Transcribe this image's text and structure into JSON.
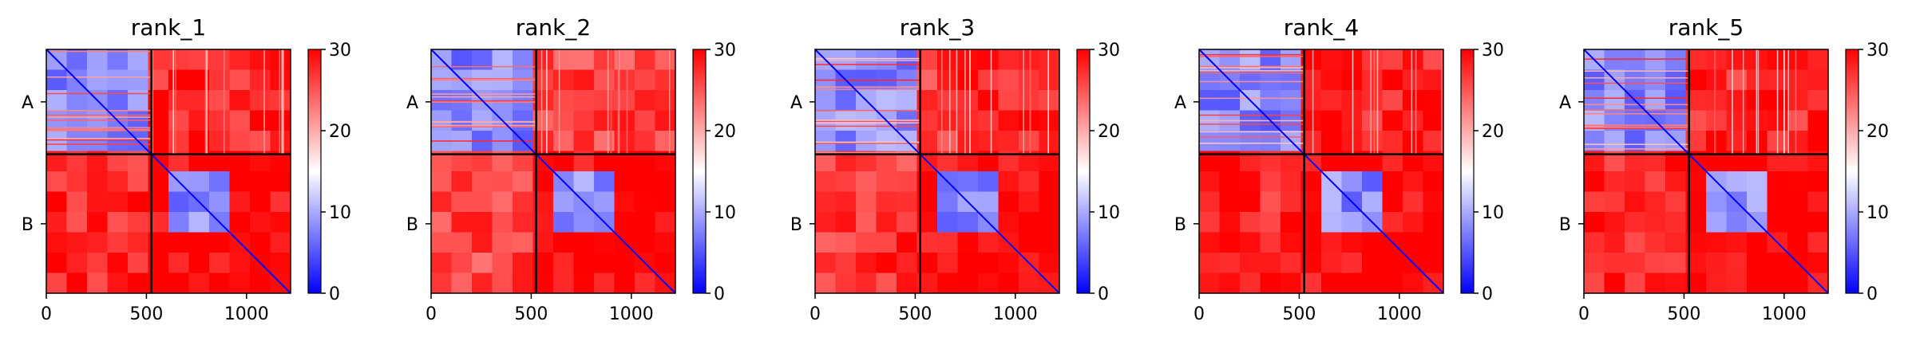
{
  "chart_data": [
    {
      "type": "heatmap",
      "title": "rank_1",
      "xlabel": "",
      "ylabel": "",
      "x_ticks": [
        0,
        500,
        1000
      ],
      "xlim": [
        0,
        1220
      ],
      "chain_labels": [
        "A",
        "B"
      ],
      "chain_boundary": 525,
      "colorbar": {
        "min": 0,
        "max": 30,
        "ticks": [
          0,
          10,
          20,
          30
        ],
        "colormap": "bwr"
      },
      "regions": {
        "A_A": {
          "mean_value": 8,
          "diagonal_value": 0
        },
        "A_B": {
          "mean_value": 28
        },
        "B_A": {
          "mean_value": 28
        },
        "B_B_core": {
          "range": [
            640,
            960
          ],
          "mean_value": 8
        },
        "B_B_tail": {
          "mean_value": 30,
          "diagonal_value": 0
        }
      },
      "grid": false,
      "legend": "colorbar-right"
    },
    {
      "type": "heatmap",
      "title": "rank_2",
      "xlabel": "",
      "ylabel": "",
      "x_ticks": [
        0,
        500,
        1000
      ],
      "xlim": [
        0,
        1220
      ],
      "chain_labels": [
        "A",
        "B"
      ],
      "chain_boundary": 525,
      "colorbar": {
        "min": 0,
        "max": 30,
        "ticks": [
          0,
          10,
          20,
          30
        ],
        "colormap": "bwr"
      },
      "regions": {
        "A_A": {
          "mean_value": 8,
          "diagonal_value": 0
        },
        "A_B": {
          "mean_value": 26
        },
        "B_A": {
          "mean_value": 26
        },
        "B_B_core": {
          "range": [
            640,
            960
          ],
          "mean_value": 8
        },
        "B_B_tail": {
          "mean_value": 30,
          "diagonal_value": 0
        }
      },
      "grid": false,
      "legend": "colorbar-right"
    },
    {
      "type": "heatmap",
      "title": "rank_3",
      "xlabel": "",
      "ylabel": "",
      "x_ticks": [
        0,
        500,
        1000
      ],
      "xlim": [
        0,
        1220
      ],
      "chain_labels": [
        "A",
        "B"
      ],
      "chain_boundary": 525,
      "colorbar": {
        "min": 0,
        "max": 30,
        "ticks": [
          0,
          10,
          20,
          30
        ],
        "colormap": "bwr"
      },
      "regions": {
        "A_A": {
          "mean_value": 8,
          "diagonal_value": 0
        },
        "A_B": {
          "mean_value": 27
        },
        "B_A": {
          "mean_value": 27
        },
        "B_B_core": {
          "range": [
            640,
            960
          ],
          "mean_value": 8
        },
        "B_B_tail": {
          "mean_value": 30,
          "diagonal_value": 0
        }
      },
      "grid": false,
      "legend": "colorbar-right"
    },
    {
      "type": "heatmap",
      "title": "rank_4",
      "xlabel": "",
      "ylabel": "",
      "x_ticks": [
        0,
        500,
        1000
      ],
      "xlim": [
        0,
        1220
      ],
      "chain_labels": [
        "A",
        "B"
      ],
      "chain_boundary": 525,
      "colorbar": {
        "min": 0,
        "max": 30,
        "ticks": [
          0,
          10,
          20,
          30
        ],
        "colormap": "bwr"
      },
      "regions": {
        "A_A": {
          "mean_value": 8,
          "diagonal_value": 0
        },
        "A_B": {
          "mean_value": 28
        },
        "B_A": {
          "mean_value": 28
        },
        "B_B_core": {
          "range": [
            640,
            960
          ],
          "mean_value": 8
        },
        "B_B_tail": {
          "mean_value": 30,
          "diagonal_value": 0
        }
      },
      "grid": false,
      "legend": "colorbar-right"
    },
    {
      "type": "heatmap",
      "title": "rank_5",
      "xlabel": "",
      "ylabel": "",
      "x_ticks": [
        0,
        500,
        1000
      ],
      "xlim": [
        0,
        1220
      ],
      "chain_labels": [
        "A",
        "B"
      ],
      "chain_boundary": 525,
      "colorbar": {
        "min": 0,
        "max": 30,
        "ticks": [
          0,
          10,
          20,
          30
        ],
        "colormap": "bwr"
      },
      "regions": {
        "A_A": {
          "mean_value": 8,
          "diagonal_value": 0
        },
        "A_B": {
          "mean_value": 28
        },
        "B_A": {
          "mean_value": 28
        },
        "B_B_core": {
          "range": [
            640,
            960
          ],
          "mean_value": 8
        },
        "B_B_tail": {
          "mean_value": 30,
          "diagonal_value": 0
        }
      },
      "grid": false,
      "legend": "colorbar-right"
    }
  ],
  "colors": {
    "low": "#0000ff",
    "mid": "#ffffff",
    "high": "#ff0000",
    "axis": "#000000",
    "text": "#000000"
  }
}
